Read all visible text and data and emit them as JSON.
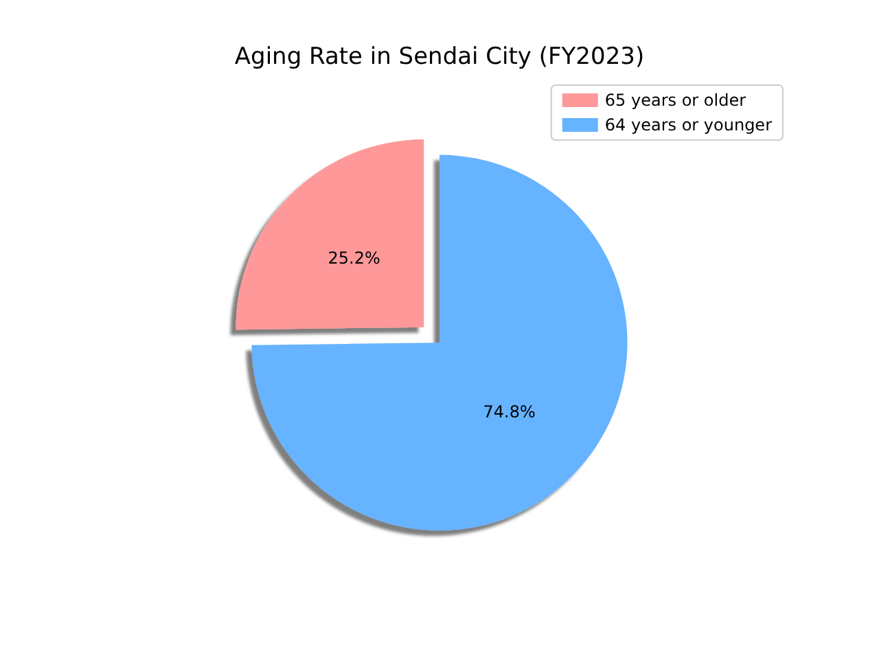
{
  "chart_data": {
    "type": "pie",
    "title": "Aging Rate in Sendai City (FY2023)",
    "categories": [
      "65 years or older",
      "64 years or younger"
    ],
    "values": [
      25.2,
      74.8
    ],
    "colors": [
      "#ff9999",
      "#66b3ff"
    ],
    "value_labels": [
      "25.2%",
      "74.8%"
    ],
    "legend": "top right"
  }
}
